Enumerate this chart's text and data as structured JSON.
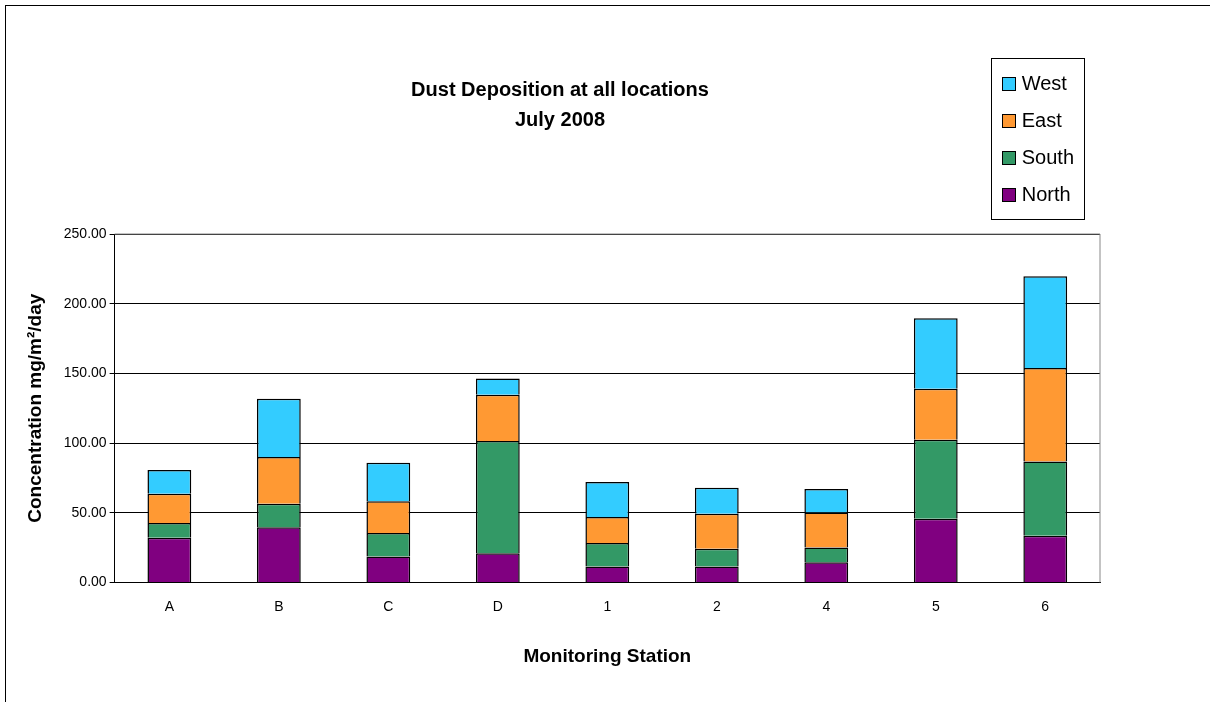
{
  "chart_data": {
    "type": "bar",
    "title": "Dust Deposition at all locations",
    "subtitle": "July 2008",
    "xlabel": "Monitoring Station",
    "ylabel": "Concentration mg/m²/day",
    "categories": [
      "A",
      "B",
      "C",
      "D",
      "1",
      "2",
      "4",
      "5",
      "6"
    ],
    "stacked": true,
    "series": [
      {
        "name": "North",
        "color": "#800080",
        "values": [
          32,
          39.6,
          18.5,
          20.9,
          11.4,
          11.4,
          14.5,
          45.7,
          33.4
        ]
      },
      {
        "name": "South",
        "color": "#339966",
        "values": [
          10.7,
          16.8,
          17,
          80.5,
          16.8,
          12.8,
          10.6,
          56.7,
          53.3
        ]
      },
      {
        "name": "East",
        "color": "#ff9933",
        "values": [
          21,
          33.6,
          22.8,
          33.2,
          18.7,
          25.1,
          25.1,
          36.5,
          67.1
        ]
      },
      {
        "name": "West",
        "color": "#33ccff",
        "values": [
          17,
          41.8,
          27.5,
          11.8,
          25.1,
          18.7,
          16.9,
          50.7,
          65.9
        ]
      }
    ],
    "ylim": [
      0,
      250
    ],
    "yticks": [
      {
        "value": 0,
        "label": "0.00"
      },
      {
        "value": 50,
        "label": "50.00"
      },
      {
        "value": 100,
        "label": "100.00"
      },
      {
        "value": 150,
        "label": "150.00"
      },
      {
        "value": 200,
        "label": "200.00"
      },
      {
        "value": 250,
        "label": "250.00"
      }
    ],
    "grid": "y",
    "legend": "top right"
  }
}
